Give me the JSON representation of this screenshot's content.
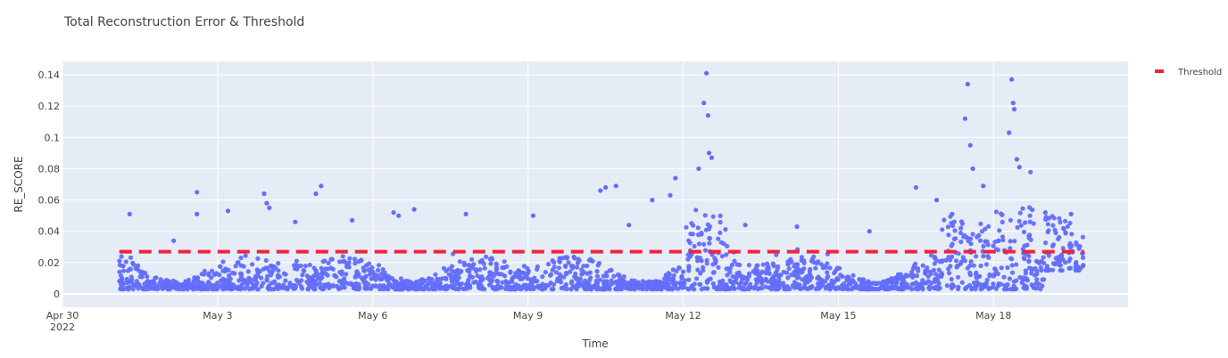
{
  "chart_data": {
    "type": "scatter",
    "title": "Total Reconstruction Error & Threshold",
    "xlabel": "Time",
    "ylabel": "RE_SCORE",
    "x_range_days": [
      0,
      20.6
    ],
    "ylim": [
      -0.0085,
      0.1485
    ],
    "x_ticks": [
      {
        "day": 0,
        "label": "Apr 30",
        "sublabel": "2022"
      },
      {
        "day": 3,
        "label": "May 3",
        "sublabel": ""
      },
      {
        "day": 6,
        "label": "May 6",
        "sublabel": ""
      },
      {
        "day": 9,
        "label": "May 9",
        "sublabel": ""
      },
      {
        "day": 12,
        "label": "May 12",
        "sublabel": ""
      },
      {
        "day": 15,
        "label": "May 15",
        "sublabel": ""
      },
      {
        "day": 18,
        "label": "May 18",
        "sublabel": ""
      }
    ],
    "y_ticks": [
      {
        "value": 0,
        "label": "0"
      },
      {
        "value": 0.02,
        "label": "0.02"
      },
      {
        "value": 0.04,
        "label": "0.04"
      },
      {
        "value": 0.06,
        "label": "0.06"
      },
      {
        "value": 0.08,
        "label": "0.08"
      },
      {
        "value": 0.1,
        "label": "0.1"
      },
      {
        "value": 0.12,
        "label": "0.12"
      },
      {
        "value": 0.14,
        "label": "0.14"
      }
    ],
    "grid": true,
    "legend_position": "top-right",
    "series": [
      {
        "name": "",
        "mode": "markers",
        "color": "#636efa",
        "x_start_day": 1.1,
        "x_end_day": 19.75,
        "points": [
          {
            "x": 1.3,
            "y": 0.051
          },
          {
            "x": 2.15,
            "y": 0.034
          },
          {
            "x": 2.6,
            "y": 0.065
          },
          {
            "x": 2.6,
            "y": 0.051
          },
          {
            "x": 3.2,
            "y": 0.053
          },
          {
            "x": 3.9,
            "y": 0.064
          },
          {
            "x": 3.95,
            "y": 0.058
          },
          {
            "x": 4.0,
            "y": 0.055
          },
          {
            "x": 4.5,
            "y": 0.046
          },
          {
            "x": 4.9,
            "y": 0.064
          },
          {
            "x": 5.0,
            "y": 0.069
          },
          {
            "x": 5.6,
            "y": 0.047
          },
          {
            "x": 6.4,
            "y": 0.052
          },
          {
            "x": 6.5,
            "y": 0.05
          },
          {
            "x": 6.8,
            "y": 0.054
          },
          {
            "x": 7.8,
            "y": 0.051
          },
          {
            "x": 9.1,
            "y": 0.05
          },
          {
            "x": 10.4,
            "y": 0.066
          },
          {
            "x": 10.5,
            "y": 0.068
          },
          {
            "x": 10.7,
            "y": 0.069
          },
          {
            "x": 10.95,
            "y": 0.044
          },
          {
            "x": 11.4,
            "y": 0.06
          },
          {
            "x": 11.75,
            "y": 0.063
          },
          {
            "x": 11.85,
            "y": 0.074
          },
          {
            "x": 12.3,
            "y": 0.08
          },
          {
            "x": 12.4,
            "y": 0.122
          },
          {
            "x": 12.45,
            "y": 0.141
          },
          {
            "x": 12.48,
            "y": 0.114
          },
          {
            "x": 12.5,
            "y": 0.09
          },
          {
            "x": 12.55,
            "y": 0.087
          },
          {
            "x": 13.2,
            "y": 0.044
          },
          {
            "x": 14.2,
            "y": 0.043
          },
          {
            "x": 15.6,
            "y": 0.04
          },
          {
            "x": 16.5,
            "y": 0.068
          },
          {
            "x": 16.9,
            "y": 0.06
          },
          {
            "x": 17.2,
            "y": 0.051
          },
          {
            "x": 17.5,
            "y": 0.134
          },
          {
            "x": 17.45,
            "y": 0.112
          },
          {
            "x": 17.55,
            "y": 0.095
          },
          {
            "x": 17.6,
            "y": 0.08
          },
          {
            "x": 17.8,
            "y": 0.069
          },
          {
            "x": 18.35,
            "y": 0.137
          },
          {
            "x": 18.38,
            "y": 0.122
          },
          {
            "x": 18.4,
            "y": 0.118
          },
          {
            "x": 18.3,
            "y": 0.103
          },
          {
            "x": 18.45,
            "y": 0.086
          },
          {
            "x": 18.5,
            "y": 0.081
          },
          {
            "x": 19.0,
            "y": 0.052
          },
          {
            "x": 19.5,
            "y": 0.051
          }
        ]
      },
      {
        "name": "Threshold",
        "mode": "lines",
        "dash": "dash",
        "color": "#ef233c",
        "x": [
          1.1,
          19.75
        ],
        "y": [
          0.027,
          0.027
        ]
      }
    ]
  }
}
